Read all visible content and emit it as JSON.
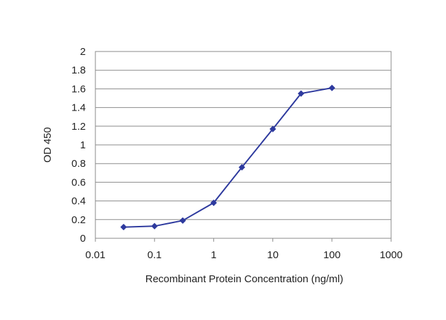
{
  "chart_data": {
    "type": "line",
    "title": "",
    "xlabel": "Recombinant Protein Concentration (ng/ml)",
    "ylabel": "OD 450",
    "x_scale": "log",
    "xlim": [
      0.01,
      1000
    ],
    "ylim": [
      0,
      2
    ],
    "x_ticks": [
      0.01,
      0.1,
      1,
      10,
      100,
      1000
    ],
    "x_tick_labels": [
      "0.01",
      "0.1",
      "1",
      "10",
      "100",
      "1000"
    ],
    "y_ticks": [
      0,
      0.2,
      0.4,
      0.6,
      0.8,
      1,
      1.2,
      1.4,
      1.6,
      1.8,
      2
    ],
    "y_tick_labels": [
      "0",
      "0.2",
      "0.4",
      "0.6",
      "0.8",
      "1",
      "1.2",
      "1.4",
      "1.6",
      "1.8",
      "2"
    ],
    "grid": "horizontal",
    "legend": "none",
    "series": [
      {
        "x": [
          0.03,
          0.1,
          0.3,
          1,
          3,
          10,
          30,
          100
        ],
        "y": [
          0.12,
          0.13,
          0.19,
          0.38,
          0.76,
          1.17,
          1.55,
          1.61
        ],
        "color": "#2E3A9E",
        "marker": "diamond"
      }
    ]
  }
}
